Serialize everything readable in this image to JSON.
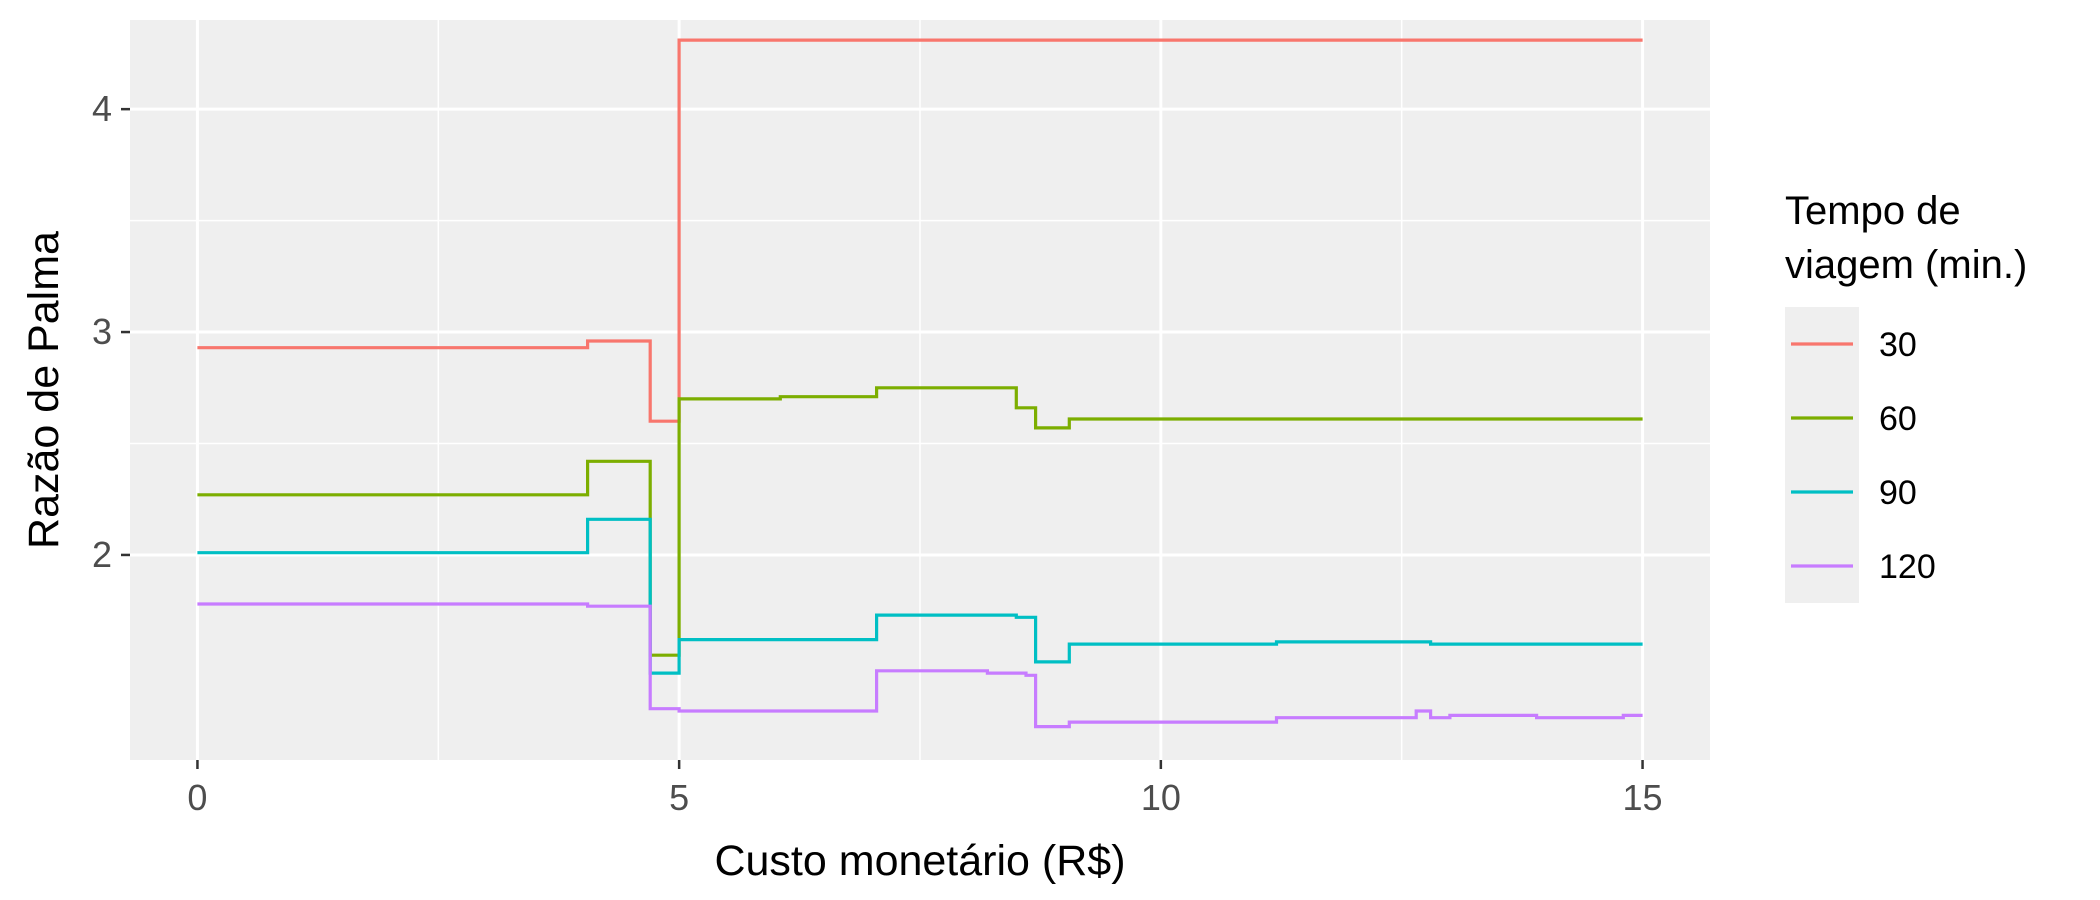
{
  "chart_data": {
    "type": "line",
    "step": true,
    "xlabel": "Custo monetário (R$)",
    "ylabel": "Razão de Palma",
    "xlim": [
      -0.7,
      15.7
    ],
    "ylim": [
      1.08,
      4.4
    ],
    "x_ticks": [
      0,
      5,
      10,
      15
    ],
    "x_tick_labels": [
      "0",
      "5",
      "10",
      "15"
    ],
    "y_ticks": [
      2,
      3,
      4
    ],
    "y_tick_labels": [
      "2",
      "3",
      "4"
    ],
    "grid": true,
    "legend": {
      "title_lines": [
        "Tempo de",
        "viagem (min.)"
      ],
      "position": "right"
    },
    "series": [
      {
        "name": "30",
        "color": "#F8766D",
        "points": [
          [
            0,
            2.93
          ],
          [
            4.05,
            2.93
          ],
          [
            4.05,
            2.96
          ],
          [
            4.7,
            2.96
          ],
          [
            4.7,
            2.6
          ],
          [
            5.0,
            2.6
          ],
          [
            5.0,
            4.31
          ],
          [
            15,
            4.31
          ]
        ]
      },
      {
        "name": "60",
        "color": "#7CAE00",
        "points": [
          [
            0,
            2.27
          ],
          [
            4.05,
            2.27
          ],
          [
            4.05,
            2.42
          ],
          [
            4.7,
            2.42
          ],
          [
            4.7,
            1.55
          ],
          [
            5.0,
            1.55
          ],
          [
            5.0,
            2.7
          ],
          [
            6.05,
            2.7
          ],
          [
            6.05,
            2.71
          ],
          [
            7.05,
            2.71
          ],
          [
            7.05,
            2.75
          ],
          [
            8.5,
            2.75
          ],
          [
            8.5,
            2.66
          ],
          [
            8.7,
            2.66
          ],
          [
            8.7,
            2.57
          ],
          [
            9.05,
            2.57
          ],
          [
            9.05,
            2.61
          ],
          [
            15,
            2.61
          ]
        ]
      },
      {
        "name": "90",
        "color": "#00BFC4",
        "points": [
          [
            0,
            2.01
          ],
          [
            4.05,
            2.01
          ],
          [
            4.05,
            2.16
          ],
          [
            4.7,
            2.16
          ],
          [
            4.7,
            1.47
          ],
          [
            5.0,
            1.47
          ],
          [
            5.0,
            1.62
          ],
          [
            7.05,
            1.62
          ],
          [
            7.05,
            1.73
          ],
          [
            8.5,
            1.73
          ],
          [
            8.5,
            1.72
          ],
          [
            8.7,
            1.72
          ],
          [
            8.7,
            1.52
          ],
          [
            9.05,
            1.52
          ],
          [
            9.05,
            1.6
          ],
          [
            11.2,
            1.6
          ],
          [
            11.2,
            1.61
          ],
          [
            12.8,
            1.61
          ],
          [
            12.8,
            1.6
          ],
          [
            15,
            1.6
          ]
        ]
      },
      {
        "name": "120",
        "color": "#C77CFF",
        "points": [
          [
            0,
            1.78
          ],
          [
            4.05,
            1.78
          ],
          [
            4.05,
            1.77
          ],
          [
            4.7,
            1.77
          ],
          [
            4.7,
            1.31
          ],
          [
            5.0,
            1.31
          ],
          [
            5.0,
            1.3
          ],
          [
            7.05,
            1.3
          ],
          [
            7.05,
            1.48
          ],
          [
            8.2,
            1.48
          ],
          [
            8.2,
            1.47
          ],
          [
            8.6,
            1.47
          ],
          [
            8.6,
            1.46
          ],
          [
            8.7,
            1.46
          ],
          [
            8.7,
            1.23
          ],
          [
            9.05,
            1.23
          ],
          [
            9.05,
            1.25
          ],
          [
            11.2,
            1.25
          ],
          [
            11.2,
            1.27
          ],
          [
            12.65,
            1.27
          ],
          [
            12.65,
            1.3
          ],
          [
            12.8,
            1.3
          ],
          [
            12.8,
            1.27
          ],
          [
            13.0,
            1.27
          ],
          [
            13.0,
            1.28
          ],
          [
            13.9,
            1.28
          ],
          [
            13.9,
            1.27
          ],
          [
            14.8,
            1.27
          ],
          [
            14.8,
            1.28
          ],
          [
            15,
            1.28
          ]
        ]
      }
    ]
  }
}
